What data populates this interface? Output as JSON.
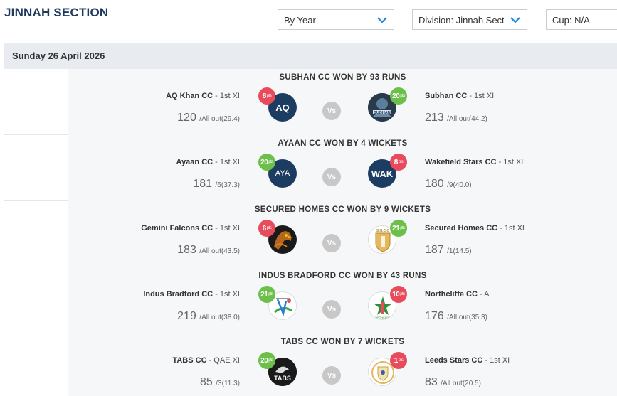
{
  "header": {
    "title": "JINNAH SECTION",
    "filters": {
      "period": "By Year",
      "division": "Division: Jinnah Section",
      "cup": "Cup: N/A"
    }
  },
  "date_label": "Sunday 26 April 2026",
  "vs_label": "Vs",
  "pts_suffix": "pts",
  "colors": {
    "win": "#6cc04a",
    "loss": "#e84b5b",
    "navy": "#1c3c62",
    "date_bar": "#e8ebf0"
  },
  "matches": [
    {
      "result": "SUBHAN CC WON BY 93 RUNS",
      "home": {
        "name": "AQ Khan CC",
        "xi": " - 1st XI",
        "runs": "120",
        "wickets": "/All out",
        "overs": "(29.4)",
        "pts": "8",
        "logo_text": "AQ",
        "logo_icon": "aq-badge-icon"
      },
      "away": {
        "name": "Subhan CC",
        "xi": " - 1st XI",
        "runs": "213",
        "wickets": "/All out",
        "overs": "(44.2)",
        "pts": "20",
        "logo_icon": "subhan-logo-icon"
      }
    },
    {
      "result": "AYAAN CC WON BY 4 WICKETS",
      "home": {
        "name": "Ayaan CC",
        "xi": " - 1st XI",
        "runs": "181",
        "wickets": "/6",
        "overs": "(37.3)",
        "pts": "20",
        "logo_text": "AYA",
        "logo_icon": "aya-badge-icon"
      },
      "away": {
        "name": "Wakefield Stars CC",
        "xi": " - 1st XI",
        "runs": "180",
        "wickets": "/9",
        "overs": "(40.0)",
        "pts": "8",
        "logo_text": "WAK",
        "logo_icon": "wak-badge-icon"
      }
    },
    {
      "result": "SECURED HOMES CC WON BY 9 WICKETS",
      "home": {
        "name": "Gemini Falcons CC",
        "xi": " - 1st XI",
        "runs": "183",
        "wickets": "/All out",
        "overs": "(43.5)",
        "pts": "6",
        "logo_icon": "falcon-logo-icon"
      },
      "away": {
        "name": "Secured Homes CC",
        "xi": " - 1st XI",
        "runs": "187",
        "wickets": "/1",
        "overs": "(14.5)",
        "pts": "21",
        "logo_icon": "secured-homes-logo-icon"
      }
    },
    {
      "result": "INDUS BRADFORD CC WON BY 43 RUNS",
      "home": {
        "name": "Indus Bradford CC",
        "xi": " - 1st XI",
        "runs": "219",
        "wickets": "/All out",
        "overs": "(38.0)",
        "pts": "21",
        "logo_icon": "indus-bradford-logo-icon"
      },
      "away": {
        "name": "Northcliffe CC",
        "xi": " - A",
        "runs": "176",
        "wickets": "/All out",
        "overs": "(35.3)",
        "pts": "10",
        "logo_icon": "northcliffe-logo-icon"
      }
    },
    {
      "result": "TABS CC WON BY 7 WICKETS",
      "home": {
        "name": "TABS CC",
        "xi": " - QAE XI",
        "runs": "85",
        "wickets": "/3",
        "overs": "(11.3)",
        "pts": "20",
        "logo_text": "TABS",
        "logo_icon": "tabs-logo-icon"
      },
      "away": {
        "name": "Leeds Stars CC",
        "xi": " - 1st XI",
        "runs": "83",
        "wickets": "/All out",
        "overs": "(20.5)",
        "pts": "1",
        "logo_icon": "leeds-stars-logo-icon"
      }
    }
  ]
}
